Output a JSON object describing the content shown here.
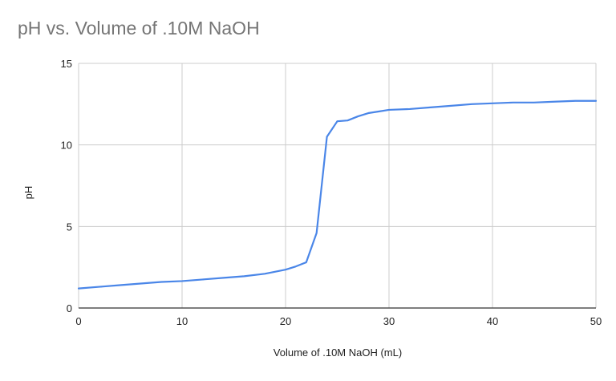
{
  "chart_data": {
    "type": "line",
    "title": "pH vs. Volume of .10M NaOH",
    "xlabel": "Volume of .10M NaOH (mL)",
    "ylabel": "pH",
    "xlim": [
      0,
      50
    ],
    "ylim": [
      0,
      15
    ],
    "xticks": [
      "0",
      "10",
      "20",
      "30",
      "40",
      "50"
    ],
    "yticks": [
      "0",
      "5",
      "10",
      "15"
    ],
    "grid": true,
    "legend": "none",
    "series": [
      {
        "color": "#4a86e8",
        "x": [
          0,
          2,
          4,
          6,
          8,
          10,
          12,
          14,
          16,
          18,
          20,
          21,
          22,
          23,
          24,
          25,
          26,
          27,
          28,
          29,
          30,
          32,
          34,
          36,
          38,
          40,
          42,
          44,
          46,
          48,
          50
        ],
        "y": [
          1.2,
          1.3,
          1.4,
          1.5,
          1.6,
          1.65,
          1.75,
          1.85,
          1.95,
          2.1,
          2.35,
          2.55,
          2.8,
          4.6,
          10.5,
          11.45,
          11.5,
          11.75,
          11.95,
          12.05,
          12.15,
          12.2,
          12.3,
          12.4,
          12.5,
          12.55,
          12.6,
          12.6,
          12.65,
          12.7,
          12.7
        ]
      }
    ]
  }
}
